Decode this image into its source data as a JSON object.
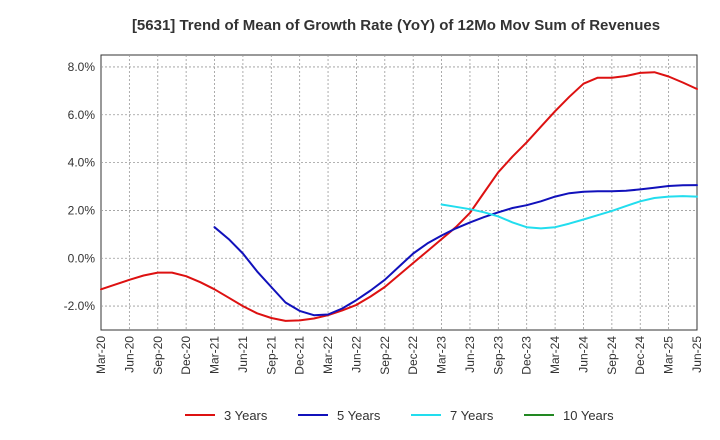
{
  "chart_data": {
    "type": "line",
    "title": "[5631]  Trend of Mean of Growth Rate (YoY) of 12Mo Mov Sum of Revenues",
    "xlabel": "",
    "ylabel": "",
    "ylim": [
      -3.0,
      8.5
    ],
    "yticks": [
      -2.0,
      0.0,
      2.0,
      4.0,
      6.0,
      8.0
    ],
    "ytick_labels": [
      "-2.0%",
      "0.0%",
      "2.0%",
      "4.0%",
      "6.0%",
      "8.0%"
    ],
    "xlim": [
      0,
      21
    ],
    "xtick_labels": [
      "Mar-20",
      "Jun-20",
      "Sep-20",
      "Dec-20",
      "Mar-21",
      "Jun-21",
      "Sep-21",
      "Dec-21",
      "Mar-22",
      "Jun-22",
      "Sep-22",
      "Dec-22",
      "Mar-23",
      "Jun-23",
      "Sep-23",
      "Dec-23",
      "Mar-24",
      "Jun-24",
      "Sep-24",
      "Dec-24",
      "Mar-25",
      "Jun-25"
    ],
    "grid": true,
    "legend_position": "bottom",
    "series": [
      {
        "name": "3 Years",
        "color": "#dd1111",
        "points": [
          [
            0,
            -1.3
          ],
          [
            0.5,
            -1.1
          ],
          [
            1,
            -0.9
          ],
          [
            1.5,
            -0.72
          ],
          [
            2,
            -0.6
          ],
          [
            2.5,
            -0.6
          ],
          [
            3,
            -0.75
          ],
          [
            3.5,
            -1.0
          ],
          [
            4,
            -1.3
          ],
          [
            4.5,
            -1.65
          ],
          [
            5,
            -2.0
          ],
          [
            5.5,
            -2.3
          ],
          [
            6,
            -2.5
          ],
          [
            6.5,
            -2.62
          ],
          [
            7,
            -2.6
          ],
          [
            7.5,
            -2.52
          ],
          [
            8,
            -2.38
          ],
          [
            8.5,
            -2.18
          ],
          [
            9,
            -1.95
          ],
          [
            9.5,
            -1.6
          ],
          [
            10,
            -1.2
          ],
          [
            10.5,
            -0.7
          ],
          [
            11,
            -0.2
          ],
          [
            11.5,
            0.3
          ],
          [
            12,
            0.8
          ],
          [
            12.5,
            1.3
          ],
          [
            13,
            1.9
          ],
          [
            13.5,
            2.75
          ],
          [
            14,
            3.6
          ],
          [
            14.5,
            4.25
          ],
          [
            15,
            4.85
          ],
          [
            15.5,
            5.5
          ],
          [
            16,
            6.15
          ],
          [
            16.5,
            6.75
          ],
          [
            17,
            7.3
          ],
          [
            17.5,
            7.55
          ],
          [
            18,
            7.55
          ],
          [
            18.5,
            7.62
          ],
          [
            19,
            7.75
          ],
          [
            19.5,
            7.78
          ],
          [
            20,
            7.6
          ],
          [
            20.5,
            7.35
          ],
          [
            21,
            7.08
          ]
        ]
      },
      {
        "name": "5 Years",
        "color": "#1111bb",
        "points": [
          [
            4,
            1.3
          ],
          [
            4.5,
            0.8
          ],
          [
            5,
            0.2
          ],
          [
            5.5,
            -0.55
          ],
          [
            6,
            -1.2
          ],
          [
            6.5,
            -1.85
          ],
          [
            7,
            -2.2
          ],
          [
            7.5,
            -2.38
          ],
          [
            8,
            -2.35
          ],
          [
            8.5,
            -2.1
          ],
          [
            9,
            -1.75
          ],
          [
            9.5,
            -1.35
          ],
          [
            10,
            -0.9
          ],
          [
            10.5,
            -0.35
          ],
          [
            11,
            0.2
          ],
          [
            11.5,
            0.62
          ],
          [
            12,
            0.95
          ],
          [
            12.5,
            1.25
          ],
          [
            13,
            1.5
          ],
          [
            13.5,
            1.72
          ],
          [
            14,
            1.92
          ],
          [
            14.5,
            2.1
          ],
          [
            15,
            2.22
          ],
          [
            15.5,
            2.38
          ],
          [
            16,
            2.58
          ],
          [
            16.5,
            2.72
          ],
          [
            17,
            2.78
          ],
          [
            17.5,
            2.8
          ],
          [
            18,
            2.8
          ],
          [
            18.5,
            2.82
          ],
          [
            19,
            2.88
          ],
          [
            19.5,
            2.95
          ],
          [
            20,
            3.02
          ],
          [
            20.5,
            3.05
          ],
          [
            21,
            3.06
          ]
        ]
      },
      {
        "name": "7 Years",
        "color": "#22ddee",
        "points": [
          [
            12,
            2.25
          ],
          [
            12.5,
            2.15
          ],
          [
            13,
            2.05
          ],
          [
            13.5,
            1.92
          ],
          [
            14,
            1.75
          ],
          [
            14.5,
            1.5
          ],
          [
            15,
            1.3
          ],
          [
            15.5,
            1.25
          ],
          [
            16,
            1.3
          ],
          [
            16.5,
            1.45
          ],
          [
            17,
            1.62
          ],
          [
            17.5,
            1.8
          ],
          [
            18,
            1.98
          ],
          [
            18.5,
            2.18
          ],
          [
            19,
            2.38
          ],
          [
            19.5,
            2.52
          ],
          [
            20,
            2.58
          ],
          [
            20.5,
            2.6
          ],
          [
            21,
            2.58
          ]
        ]
      },
      {
        "name": "10 Years",
        "color": "#228822",
        "points": []
      }
    ]
  }
}
